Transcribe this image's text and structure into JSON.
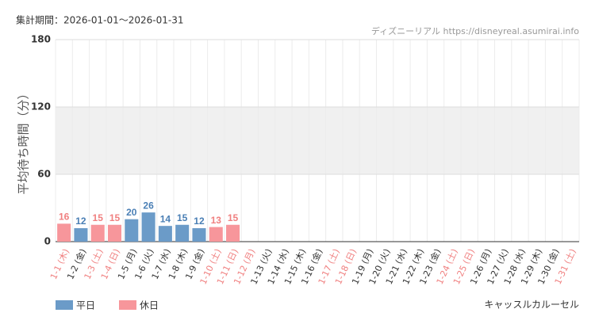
{
  "chart_data": {
    "type": "bar",
    "period": "集計期間：2026-01-01〜2026-01-31",
    "source": "ディズニーリアル https://disneyreal.asumirai.info",
    "y_label": "平均待ち時間（分）",
    "attraction": "キャッスルカルーセル",
    "categories": [
      "1-1 (木)",
      "1-2 (金)",
      "1-3 (土)",
      "1-4 (日)",
      "1-5 (月)",
      "1-6 (火)",
      "1-7 (水)",
      "1-8 (木)",
      "1-9 (金)",
      "1-10 (土)",
      "1-11 (日)",
      "1-12 (月)",
      "1-13 (火)",
      "1-14 (水)",
      "1-15 (木)",
      "1-16 (金)",
      "1-17 (土)",
      "1-18 (日)",
      "1-19 (月)",
      "1-20 (火)",
      "1-21 (水)",
      "1-22 (木)",
      "1-23 (金)",
      "1-24 (土)",
      "1-25 (日)",
      "1-26 (月)",
      "1-27 (火)",
      "1-28 (水)",
      "1-29 (木)",
      "1-30 (金)",
      "1-31 (土)"
    ],
    "category_label_colors": [
      "#f08080",
      "#333333",
      "#f08080",
      "#f08080",
      "#333333",
      "#333333",
      "#333333",
      "#333333",
      "#333333",
      "#f08080",
      "#f08080",
      "#f08080",
      "#333333",
      "#333333",
      "#333333",
      "#333333",
      "#f08080",
      "#f08080",
      "#333333",
      "#333333",
      "#333333",
      "#333333",
      "#333333",
      "#f08080",
      "#f08080",
      "#333333",
      "#333333",
      "#333333",
      "#333333",
      "#333333",
      "#f08080"
    ],
    "series": [
      {
        "name": "平日",
        "color": "#6b9bc8",
        "label_color": "#4a7fb5",
        "values": [
          null,
          12,
          null,
          null,
          20,
          26,
          14,
          15,
          12,
          null,
          null,
          null,
          null,
          null,
          null,
          null,
          null,
          null,
          null,
          null,
          null,
          null,
          null,
          null,
          null,
          null,
          null,
          null,
          null,
          null,
          null
        ]
      },
      {
        "name": "休日",
        "color": "#f7969b",
        "label_color": "#f08080",
        "values": [
          16,
          null,
          15,
          15,
          null,
          null,
          null,
          null,
          null,
          13,
          15,
          null,
          null,
          null,
          null,
          null,
          null,
          null,
          null,
          null,
          null,
          null,
          null,
          null,
          null,
          null,
          null,
          null,
          null,
          null,
          null
        ]
      }
    ],
    "ylim": [
      0,
      180
    ],
    "yticks": [
      0,
      60,
      120,
      180
    ],
    "shaded_band": [
      60,
      120
    ],
    "grid": true
  }
}
